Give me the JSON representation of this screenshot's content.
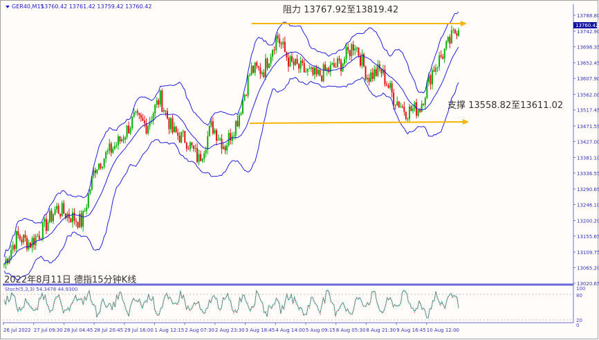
{
  "header": {
    "symbol": "GER40,M15",
    "ohlc": "13760.42 13761.42 13759.42 13760.42"
  },
  "annotations": {
    "resistance": "阻力 13767.92至13819.42",
    "support": "支撑 13558.82至13611.02",
    "caption": "2022年8月11日 德指15分钟K线"
  },
  "colors": {
    "axis": "#6b6bd8",
    "band": "#1f1fe0",
    "bull": "#00b000",
    "bear": "#e01010",
    "arrow": "#f5b400",
    "stoch_main": "#30c0b0",
    "stoch_signal": "#e02020"
  },
  "chart_data": {
    "type": "candlestick",
    "price_ticks": [
      "13788.80",
      "13742.90",
      "13698.35",
      "13652.45",
      "13607.90",
      "13562.00",
      "13517.45",
      "13471.55",
      "13427.00",
      "13381.10",
      "13336.55",
      "13290.65",
      "13246.10",
      "13200.20",
      "13155.65",
      "13109.75",
      "13065.20",
      "13020.65"
    ],
    "current_price": "13760.42",
    "ylim": [
      13020.65,
      13788.8
    ],
    "x_labels": [
      "26 Jul 2022",
      "27 Jul 09:30",
      "28 Jul 04:45",
      "28 Jul 20:45",
      "29 Jul 16:00",
      "1 Aug 12:15",
      "2 Aug 07:30",
      "2 Aug 23:30",
      "3 Aug 18:45",
      "4 Aug 14:00",
      "5 Aug 09:15",
      "8 Aug 05:30",
      "8 Aug 21:30",
      "9 Aug 16:45",
      "10 Aug 12:00"
    ],
    "closes": [
      13076,
      13155,
      13135,
      13175,
      13235,
      13215,
      13195,
      13354,
      13394,
      13433,
      13493,
      13473,
      13553,
      13453,
      13433,
      13374,
      13473,
      13413,
      13493,
      13632,
      13632,
      13731,
      13652,
      13632,
      13612,
      13632,
      13652,
      13711,
      13612,
      13632,
      13553,
      13513,
      13523,
      13632,
      13691,
      13760
    ],
    "resistance_level": 13767.92,
    "support_level": 13558.82,
    "indicator": {
      "label": "Stoch(5,3,3) 54.3478 44.9300",
      "levels": [
        "100",
        "80",
        "20",
        "0"
      ],
      "values": [
        60,
        85,
        30,
        70,
        20,
        90,
        40,
        75,
        15,
        80,
        55,
        88,
        25,
        65,
        35,
        92,
        18,
        70,
        50,
        85,
        22,
        78,
        45,
        90,
        30,
        60,
        12,
        82,
        48,
        75,
        28,
        88,
        40,
        95,
        20,
        68,
        35,
        86,
        55,
        20,
        72,
        40,
        90,
        30,
        62,
        15,
        80,
        50,
        88,
        25,
        70,
        45,
        92,
        35,
        58,
        18,
        85,
        40,
        94,
        55
      ]
    }
  }
}
